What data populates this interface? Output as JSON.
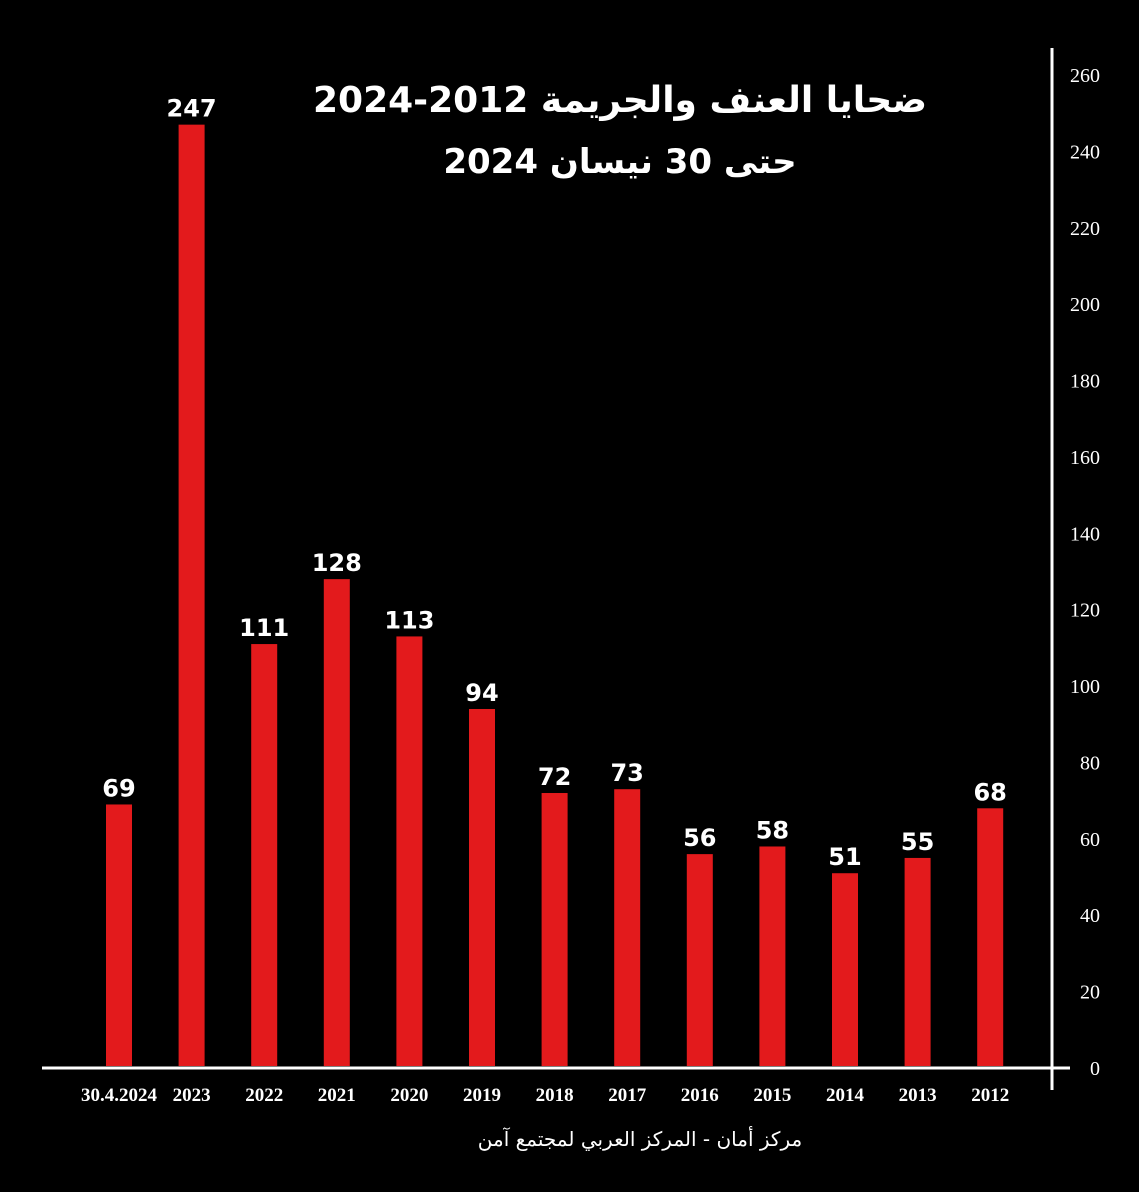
{
  "chart_data": {
    "type": "bar",
    "title": "ضحايا العنف والجريمة 2012-2024",
    "subtitle": "حتى 30 نيسان 2024",
    "source": "مركز أمان - المركز العربي لمجتمع آمن",
    "categories": [
      "30.4.2024",
      "2023",
      "2022",
      "2021",
      "2020",
      "2019",
      "2018",
      "2017",
      "2016",
      "2015",
      "2014",
      "2013",
      "2012"
    ],
    "values": [
      69,
      247,
      111,
      128,
      113,
      94,
      72,
      73,
      56,
      58,
      51,
      55,
      68
    ],
    "ylim": [
      0,
      260
    ],
    "yticks": [
      0,
      20,
      40,
      60,
      80,
      100,
      120,
      140,
      160,
      180,
      200,
      220,
      240,
      260
    ],
    "y_axis_side": "right",
    "grid": false,
    "bar_color": "#e31a1c",
    "background": "#000000",
    "text_color": "#ffffff"
  }
}
